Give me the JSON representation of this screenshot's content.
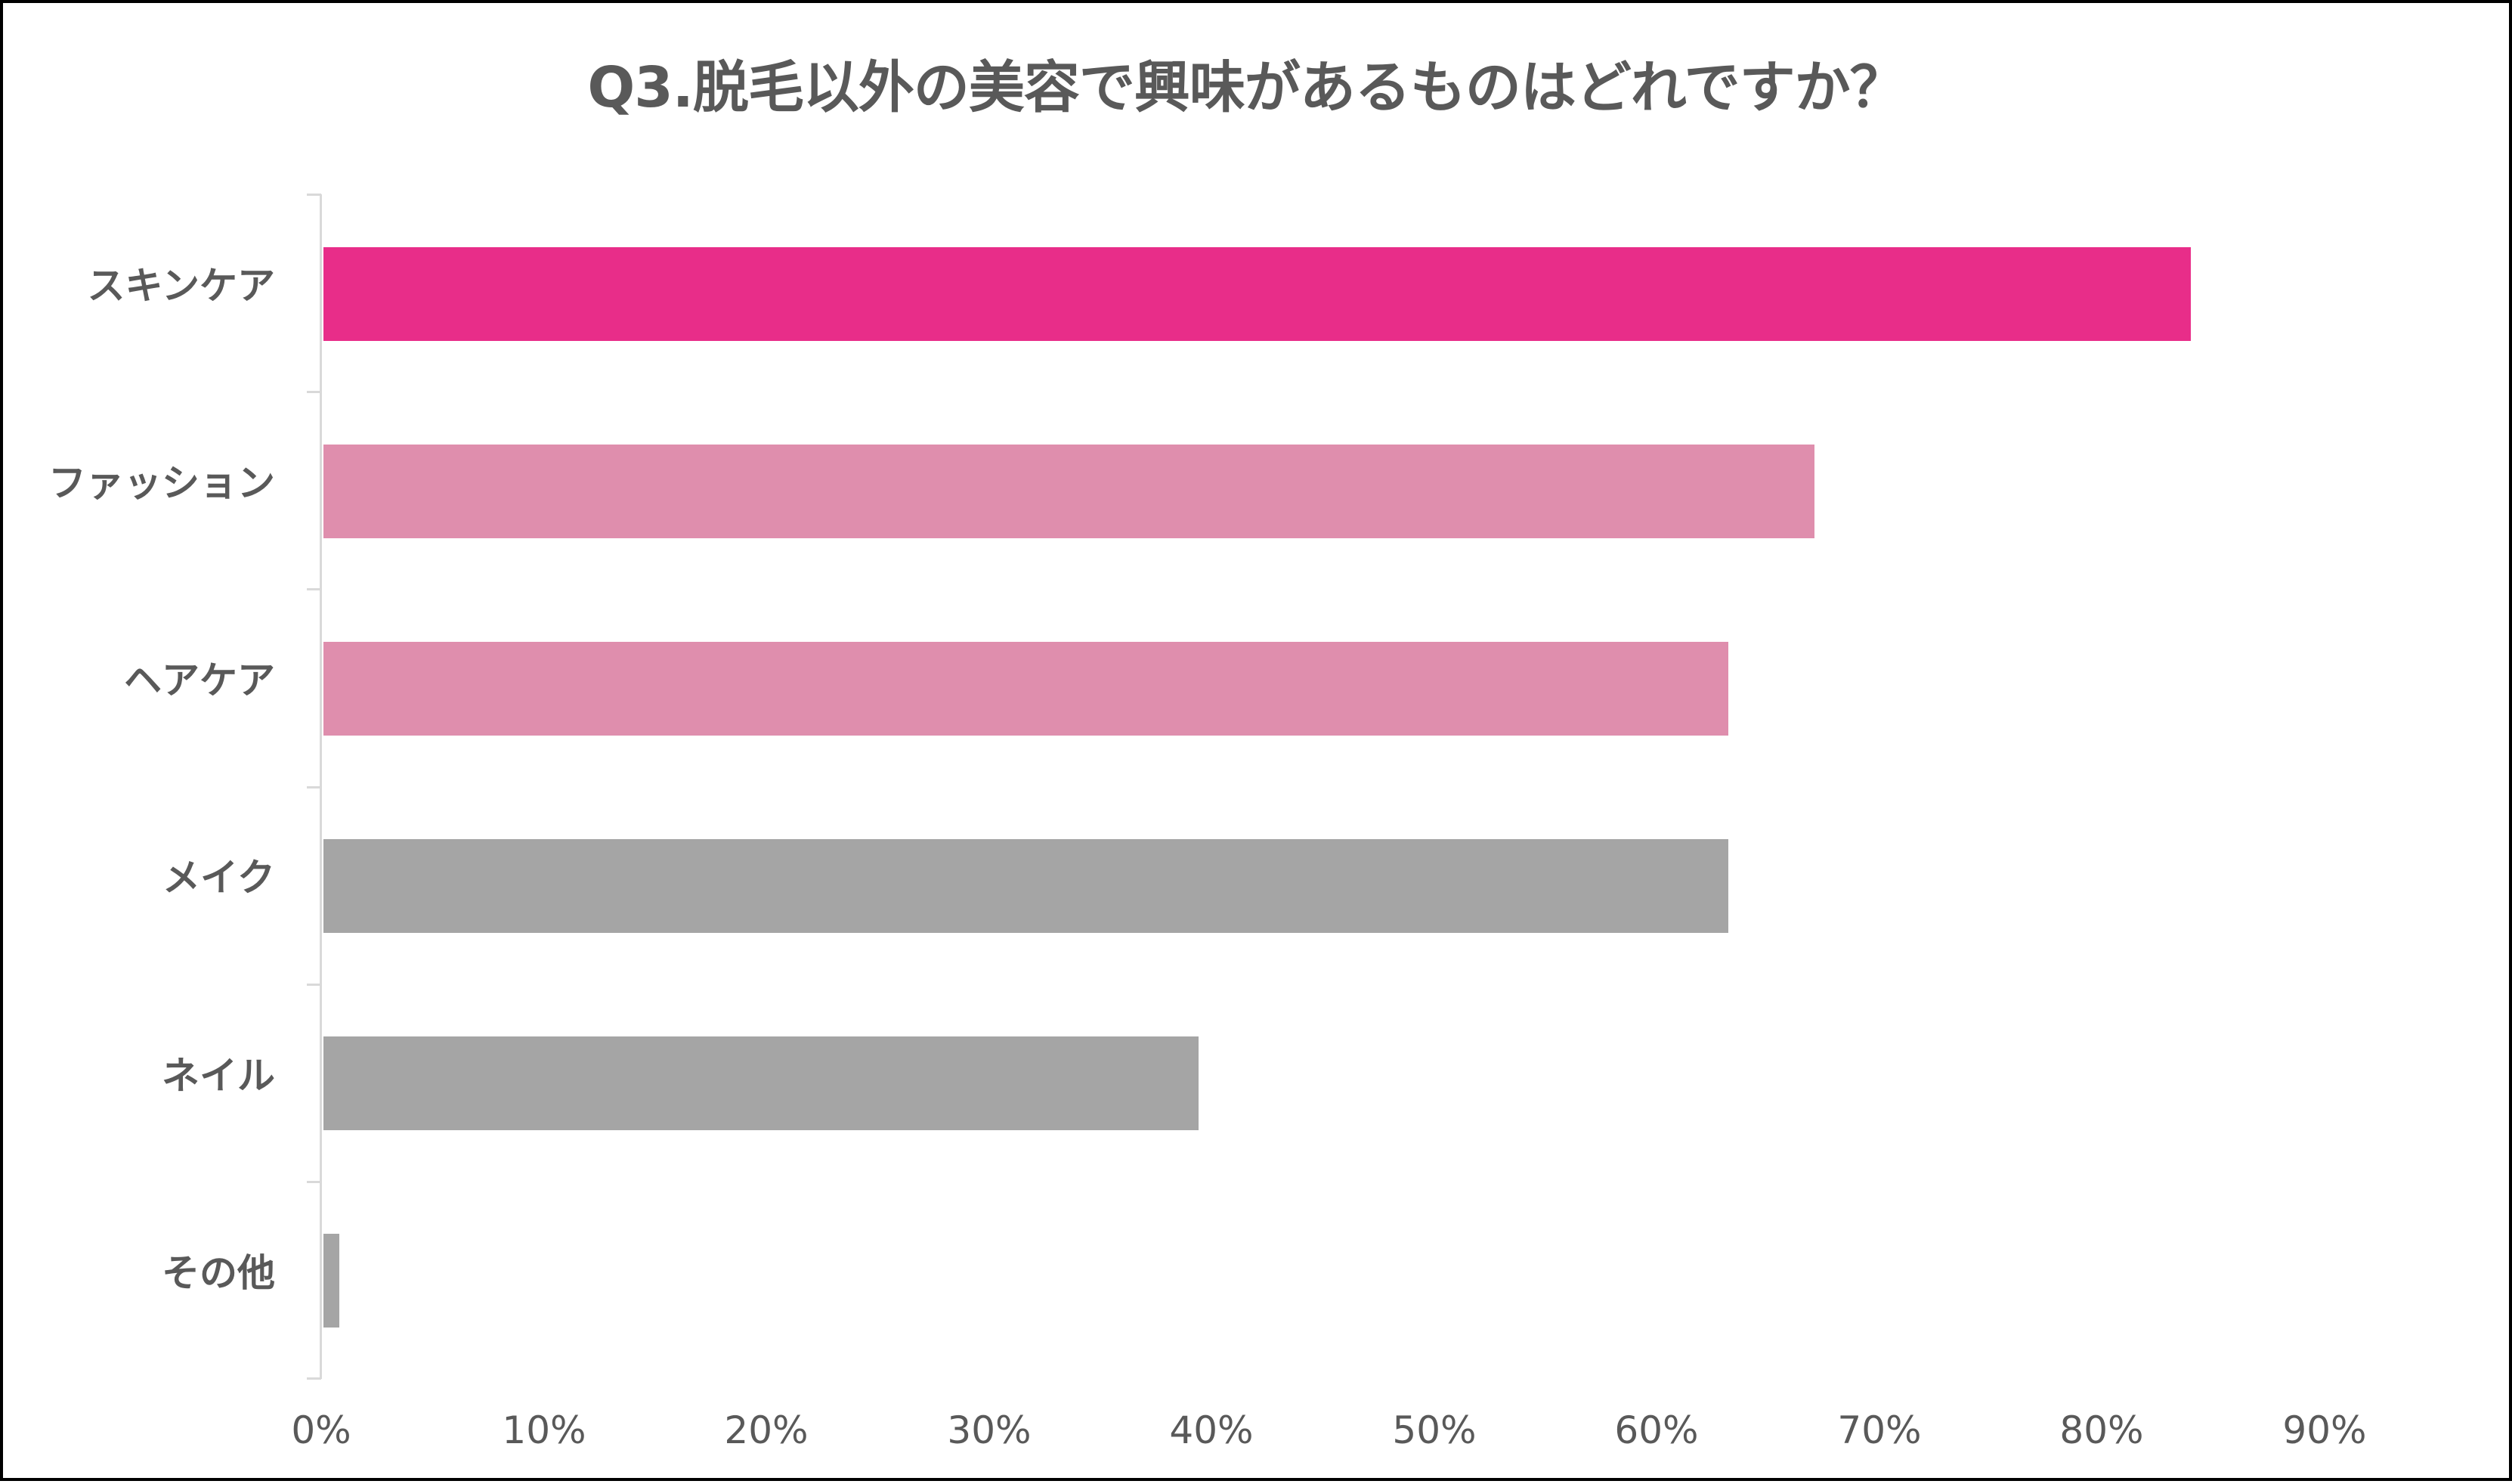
{
  "chart_data": {
    "type": "bar",
    "orientation": "horizontal",
    "title": "Q3.脱毛以外の美容で興味があるものはどれですか？",
    "xlabel": "",
    "ylabel": "",
    "categories": [
      "スキンケア",
      "ファッション",
      "ヘアケア",
      "メイク",
      "ネイル",
      "その他"
    ],
    "values": [
      84.0,
      67.1,
      63.2,
      63.2,
      39.4,
      0.8
    ],
    "value_unit": "%",
    "bar_colors": [
      "#E82D89",
      "#DF8EAD",
      "#DF8EAD",
      "#A5A5A5",
      "#A5A5A5",
      "#A5A5A5"
    ],
    "xlim": [
      0,
      90
    ],
    "x_ticks": [
      "0%",
      "10%",
      "20%",
      "30%",
      "40%",
      "50%",
      "60%",
      "70%",
      "80%",
      "90%"
    ],
    "grid": false,
    "legend": null
  },
  "colors": {
    "highlight": "#E82D89",
    "secondary": "#DF8EAD",
    "neutral": "#A5A5A5",
    "text": "#595959",
    "axis": "#D9D9D9"
  }
}
